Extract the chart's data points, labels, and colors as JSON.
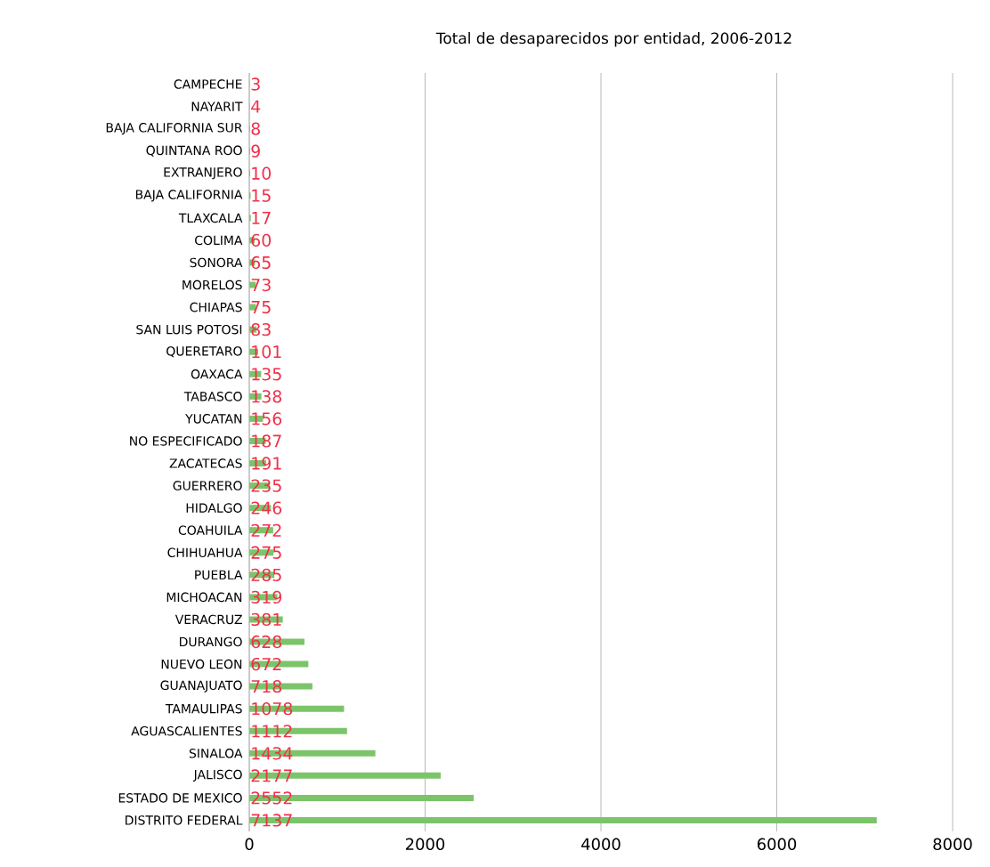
{
  "chart_data": {
    "type": "bar",
    "orientation": "horizontal",
    "title": "Total de desaparecidos por entidad, 2006-2012",
    "categories": [
      "CAMPECHE",
      "NAYARIT",
      "BAJA CALIFORNIA SUR",
      "QUINTANA ROO",
      "EXTRANJERO",
      "BAJA CALIFORNIA",
      "TLAXCALA",
      "COLIMA",
      "SONORA",
      "MORELOS",
      "CHIAPAS",
      "SAN LUIS POTOSI",
      "QUERETARO",
      "OAXACA",
      "TABASCO",
      "YUCATAN",
      "NO ESPECIFICADO",
      "ZACATECAS",
      "GUERRERO",
      "HIDALGO",
      "COAHUILA",
      "CHIHUAHUA",
      "PUEBLA",
      "MICHOACAN",
      "VERACRUZ",
      "DURANGO",
      "NUEVO LEON",
      "GUANAJUATO",
      "TAMAULIPAS",
      "AGUASCALIENTES",
      "SINALOA",
      "JALISCO",
      "ESTADO DE MEXICO",
      "DISTRITO FEDERAL"
    ],
    "values": [
      3,
      4,
      8,
      9,
      10,
      15,
      17,
      60,
      65,
      73,
      75,
      83,
      101,
      135,
      138,
      156,
      187,
      191,
      235,
      246,
      272,
      275,
      285,
      319,
      381,
      628,
      672,
      718,
      1078,
      1112,
      1434,
      2177,
      2552,
      7137
    ],
    "color": "#7cc46a",
    "xlim": [
      0,
      8000
    ],
    "xticks": [
      0,
      2000,
      4000,
      6000,
      8000
    ],
    "grid": "x",
    "data_labels": true
  }
}
